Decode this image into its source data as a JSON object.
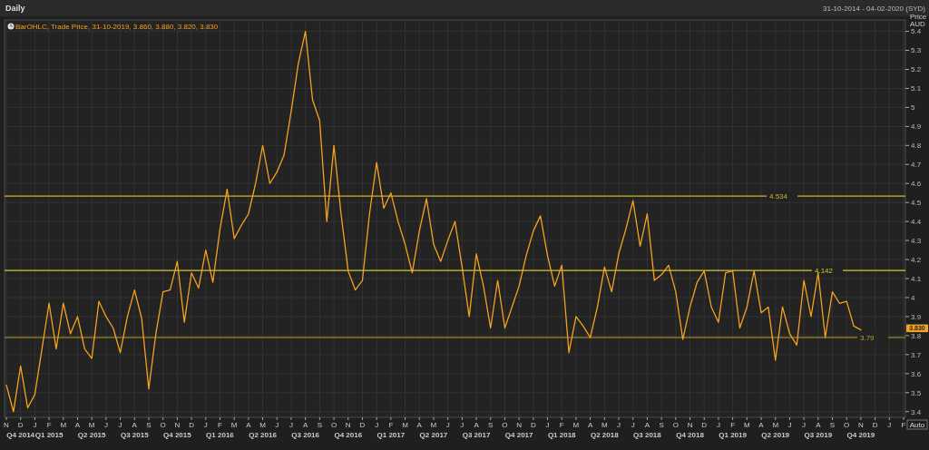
{
  "chart_data": {
    "type": "line",
    "title": "Daily",
    "subtitle": "31-10-2014 - 04-02-2020 (SYD)",
    "ylabel": "Price AUD",
    "categories": [
      "N",
      null,
      "D\nQ4 2014",
      null,
      "J",
      null,
      "F\nQ1 2015",
      null,
      "M",
      null,
      "A",
      null,
      "M\nQ2 2015",
      null,
      "J",
      null,
      "J",
      null,
      "A\nQ3 2015",
      null,
      "S",
      null,
      "O",
      null,
      "N\nQ4 2015",
      null,
      "D",
      null,
      "J",
      null,
      "F\nQ1 2016",
      null,
      "M",
      null,
      "A",
      null,
      "M\nQ2 2016",
      null,
      "J",
      null,
      "J",
      null,
      "A\nQ3 2016",
      null,
      "S",
      null,
      "O",
      null,
      "N\nQ4 2016",
      null,
      "D",
      null,
      "J",
      null,
      "F\nQ1 2017",
      null,
      "M",
      null,
      "A",
      null,
      "M\nQ2 2017",
      null,
      "J",
      null,
      "J",
      null,
      "A\nQ3 2017",
      null,
      "S",
      null,
      "O",
      null,
      "N\nQ4 2017",
      null,
      "D",
      null,
      "J",
      null,
      "F\nQ1 2018",
      null,
      "M",
      null,
      "A",
      null,
      "M\nQ2 2018",
      null,
      "J",
      null,
      "J",
      null,
      "A\nQ3 2018",
      null,
      "S",
      null,
      "O",
      null,
      "N\nQ4 2018",
      null,
      "D",
      null,
      "J",
      null,
      "F\nQ1 2019",
      null,
      "M",
      null,
      "A",
      null,
      "M\nQ2 2019",
      null,
      "J",
      null,
      "J",
      null,
      "A\nQ3 2019",
      null,
      "S",
      null,
      "O",
      null,
      "N\nQ4 2019",
      null,
      "D",
      null,
      "J",
      null,
      "F"
    ],
    "series": [
      {
        "color": "#f5a21e",
        "values": [
          3.54,
          3.4,
          3.64,
          3.42,
          3.49,
          3.73,
          3.97,
          3.73,
          3.97,
          3.81,
          3.9,
          3.73,
          3.68,
          3.98,
          3.9,
          3.84,
          3.71,
          3.9,
          4.04,
          3.89,
          3.52,
          3.81,
          4.03,
          4.04,
          4.19,
          3.87,
          4.13,
          4.05,
          4.25,
          4.08,
          4.36,
          4.57,
          4.31,
          4.38,
          4.44,
          4.6,
          4.8,
          4.6,
          4.66,
          4.75,
          4.98,
          5.23,
          5.4,
          5.04,
          4.93,
          4.4,
          4.8,
          4.44,
          4.14,
          4.04,
          4.09,
          4.44,
          4.71,
          4.47,
          4.55,
          4.4,
          4.28,
          4.13,
          4.35,
          4.52,
          4.28,
          4.19,
          4.3,
          4.4,
          4.16,
          3.9,
          4.23,
          4.06,
          3.84,
          4.09,
          3.84,
          3.95,
          4.06,
          4.22,
          4.35,
          4.43,
          4.22,
          4.06,
          4.17,
          3.71,
          3.9,
          3.85,
          3.79,
          3.95,
          4.16,
          4.03,
          4.23,
          4.36,
          4.51,
          4.27,
          4.44,
          4.09,
          4.12,
          4.17,
          4.03,
          3.78,
          3.95,
          4.08,
          4.14,
          3.95,
          3.87,
          4.13,
          4.14,
          3.84,
          3.95,
          4.14,
          3.92,
          3.95,
          3.67,
          3.95,
          3.81,
          3.75,
          4.09,
          3.9,
          4.13,
          3.79,
          4.03,
          3.97,
          3.98,
          3.85,
          3.83,
          null,
          null,
          null,
          null,
          null,
          null
        ]
      }
    ],
    "ylim": [
      3.37,
      5.46
    ],
    "yticks": [
      3.4,
      3.5,
      3.6,
      3.7,
      3.8,
      3.9,
      4,
      4.1,
      4.2,
      4.3,
      4.4,
      4.5,
      4.6,
      4.7,
      4.8,
      4.9,
      5,
      5.1,
      5.2,
      5.3,
      5.4
    ],
    "grid": true,
    "marker": "none",
    "line_style": "solid",
    "ref_lines": [
      {
        "axis": "y",
        "value": 4.534,
        "label": "4.534",
        "color": "#c8b428"
      },
      {
        "axis": "y",
        "value": 4.142,
        "label": "4.142",
        "color": "#d2c832"
      },
      {
        "axis": "y",
        "value": 3.79,
        "label": "3.79",
        "color": "#b4a028"
      }
    ],
    "annotations": [
      "BarOHLC, Trade Price, 31-10-2019, 3.860, 3.880, 3.820, 3.830",
      "Auto",
      "3.830"
    ]
  }
}
